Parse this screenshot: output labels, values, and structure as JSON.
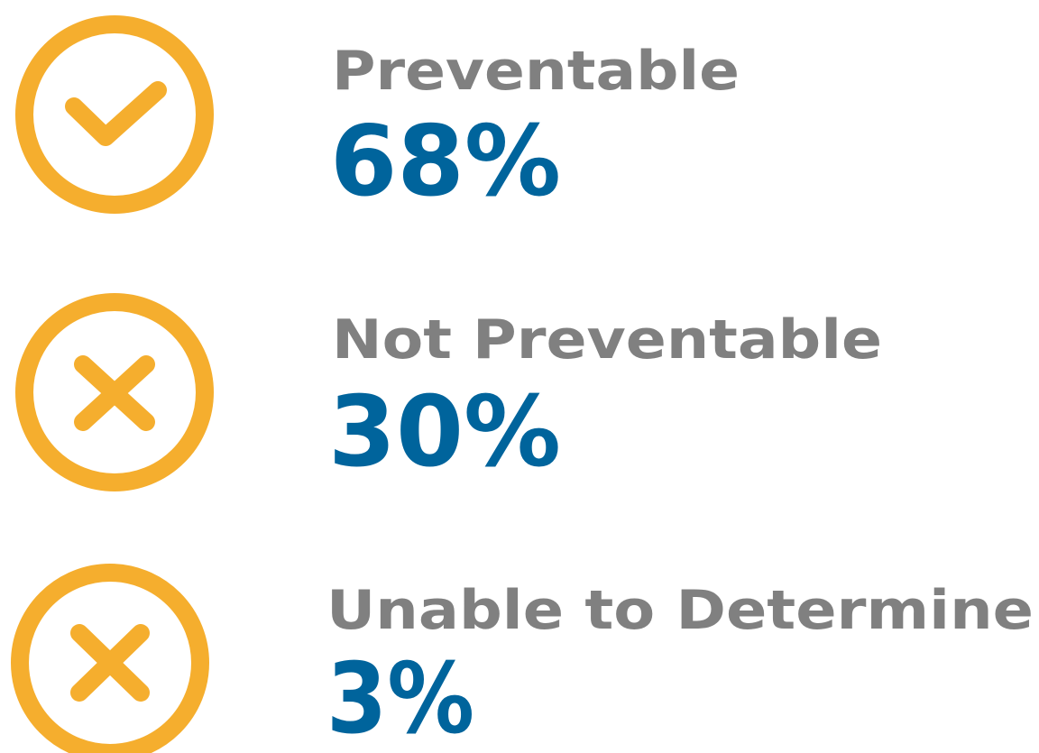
{
  "items": [
    {
      "label": "Preventable",
      "value": "68%"
    },
    {
      "label": "Not Preventable",
      "value": "30%"
    },
    {
      "label": "Unable to Determine",
      "value": "3%"
    }
  ]
}
